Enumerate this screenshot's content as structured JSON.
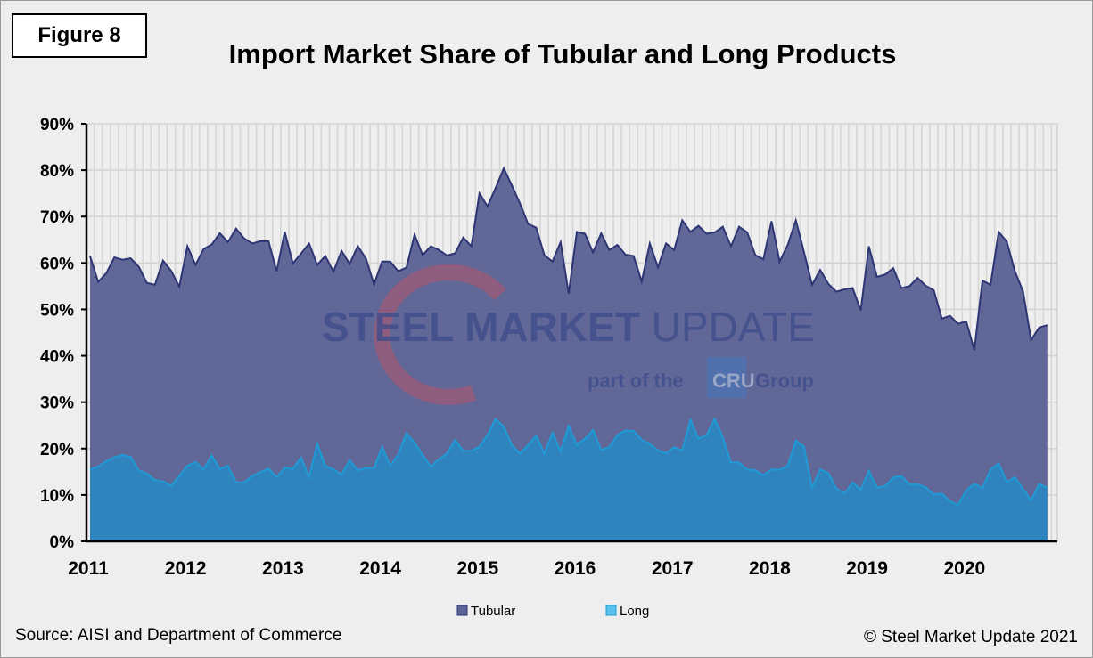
{
  "figure_label": "Figure 8",
  "source": "Source: AISI and Department of Commerce",
  "copyright": "© Steel Market Update 2021",
  "watermark": {
    "line1a": "STEEL MARKET",
    "line1b": " UPDATE",
    "line2a": "part of the",
    "badge": "CRU",
    "line2b": "Group"
  },
  "colors": {
    "tubular_fill": "#5b6294",
    "tubular_line": "#2e3575",
    "long_fill": "#2f84be",
    "long_line": "#1e9bd7",
    "background": "#eeeeee"
  },
  "chart_data": {
    "type": "area",
    "title": "Import Market Share of Tubular and Long Products",
    "xlabel": "",
    "ylabel": "",
    "x_start": "2011-01",
    "x_end": "2020-11",
    "frequency": "monthly",
    "x_tick_labels": [
      "2011",
      "2012",
      "2013",
      "2014",
      "2015",
      "2016",
      "2017",
      "2018",
      "2019",
      "2020"
    ],
    "y_tick_labels": [
      "0%",
      "10%",
      "20%",
      "30%",
      "40%",
      "50%",
      "60%",
      "70%",
      "80%",
      "90%"
    ],
    "ylim": [
      0,
      90
    ],
    "grid": "on",
    "legend_position": "bottom",
    "stacked": false,
    "series": [
      {
        "name": "Tubular",
        "values": [
          61.5,
          55.9,
          57.8,
          61.2,
          60.7,
          61.0,
          59.2,
          55.7,
          55.3,
          60.5,
          58.3,
          54.9,
          63.6,
          59.6,
          63.0,
          64.0,
          66.4,
          64.5,
          67.4,
          65.3,
          64.2,
          64.7,
          64.7,
          58.2,
          66.7,
          59.9,
          62.0,
          64.2,
          59.6,
          61.5,
          58.1,
          62.6,
          59.8,
          63.6,
          61.0,
          55.4,
          60.3,
          60.3,
          58.2,
          59.0,
          66.1,
          61.7,
          63.6,
          62.8,
          61.6,
          62.1,
          65.5,
          63.6,
          75.0,
          72.2,
          76.2,
          80.4,
          76.7,
          72.8,
          68.4,
          67.6,
          61.7,
          60.3,
          64.5,
          53.4,
          66.7,
          66.3,
          62.3,
          66.4,
          62.8,
          63.9,
          61.8,
          61.5,
          56.0,
          64.2,
          59.1,
          64.2,
          62.8,
          69.2,
          66.7,
          68.0,
          66.3,
          66.6,
          67.8,
          63.6,
          67.8,
          66.6,
          61.7,
          60.8,
          69.0,
          60.3,
          63.9,
          69.2,
          62.4,
          55.3,
          58.5,
          55.5,
          53.8,
          54.3,
          54.6,
          49.8,
          63.6,
          57.0,
          57.5,
          58.9,
          54.6,
          55.0,
          56.8,
          55.1,
          54.1,
          48.0,
          48.6,
          46.9,
          47.4,
          41.2,
          56.2,
          55.3,
          66.7,
          64.6,
          58.2,
          53.9,
          43.4,
          46.1,
          46.6
        ]
      },
      {
        "name": "Long",
        "values": [
          15.5,
          16.1,
          17.3,
          18.1,
          18.6,
          18.2,
          15.3,
          14.6,
          13.2,
          12.9,
          12.0,
          14.1,
          16.3,
          17.1,
          15.5,
          18.5,
          15.6,
          16.3,
          12.7,
          12.7,
          14.1,
          14.9,
          15.7,
          13.8,
          15.9,
          15.6,
          18.1,
          13.8,
          21.0,
          16.3,
          15.5,
          14.4,
          17.5,
          15.3,
          15.8,
          15.8,
          20.4,
          16.2,
          18.8,
          23.3,
          21.3,
          18.6,
          16.1,
          17.7,
          18.9,
          21.9,
          19.5,
          19.5,
          20.4,
          23.0,
          26.4,
          24.7,
          20.7,
          18.9,
          20.8,
          22.8,
          18.9,
          23.4,
          19.4,
          24.9,
          20.8,
          22.1,
          24.0,
          19.7,
          20.3,
          22.9,
          23.9,
          23.8,
          21.9,
          21.0,
          19.6,
          19.0,
          20.3,
          19.6,
          26.2,
          22.1,
          22.9,
          26.4,
          22.4,
          17.0,
          17.0,
          15.5,
          15.3,
          14.3,
          15.5,
          15.4,
          16.3,
          21.7,
          20.4,
          11.6,
          15.5,
          14.7,
          11.3,
          10.3,
          12.7,
          11.1,
          15.2,
          11.6,
          11.9,
          13.8,
          14.1,
          12.3,
          12.3,
          11.6,
          10.1,
          10.3,
          8.6,
          7.9,
          11.0,
          12.4,
          11.5,
          15.5,
          16.8,
          12.8,
          13.8,
          11.3,
          8.8,
          12.4,
          11.5
        ]
      }
    ]
  }
}
